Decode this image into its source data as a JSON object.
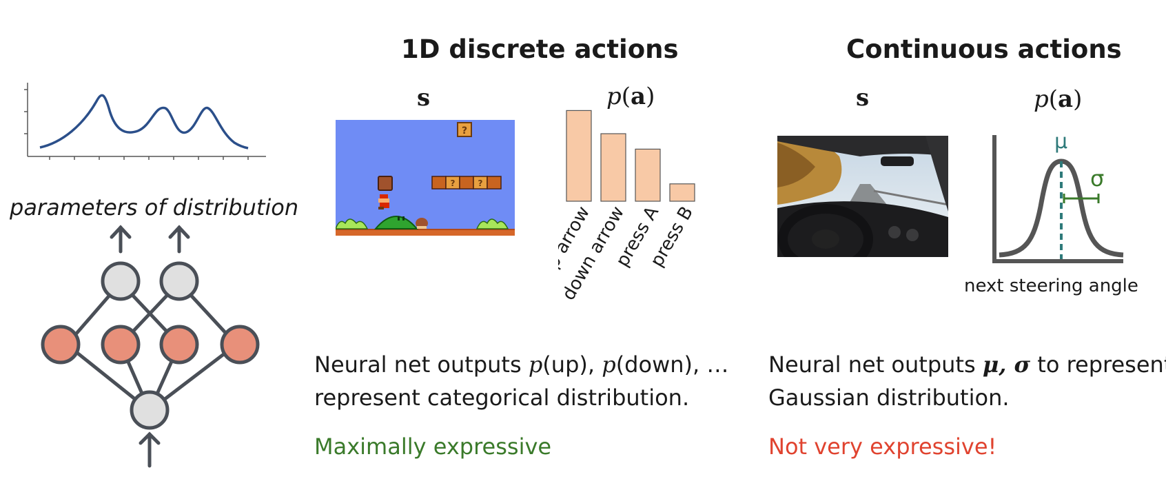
{
  "left": {
    "param_label": "parameters of distribution"
  },
  "discrete": {
    "title": "1D discrete actions",
    "state_label": "s",
    "dist_label_fn": "p",
    "dist_label_arg": "a",
    "desc_prefix": "Neural net outputs ",
    "desc_math1": "p",
    "desc_arg1": "(up), ",
    "desc_math2": "p",
    "desc_arg2": "(down), …",
    "desc_line2": "represent categorical distribution.",
    "verdict": "Maximally expressive"
  },
  "continuous": {
    "title": "Continuous actions",
    "state_label": "s",
    "dist_label_fn": "p",
    "dist_label_arg": "a",
    "mu_label": "μ",
    "sigma_label": "σ",
    "axis_caption": "next steering angle",
    "desc_prefix": "Neural net outputs ",
    "desc_math": "μ, σ",
    "desc_suffix": " to represent",
    "desc_line2": "Gaussian distribution.",
    "verdict": "Not very expressive!"
  },
  "colors": {
    "bar_fill": "#f8c9a6",
    "node_orange": "#e8907a",
    "node_gray": "#e0e0e0",
    "net_stroke": "#4a4f57",
    "gauss_stroke": "#555555",
    "mu_color": "#2e7a7a",
    "sigma_color": "#3a7a2a",
    "curve_blue": "#2b4f8a"
  },
  "chart_data": {
    "type": "bar",
    "categories": [
      "up arrow",
      "down arrow",
      "press A",
      "press B"
    ],
    "values": [
      0.47,
      0.35,
      0.27,
      0.09
    ],
    "ylim": [
      0,
      0.5
    ]
  }
}
